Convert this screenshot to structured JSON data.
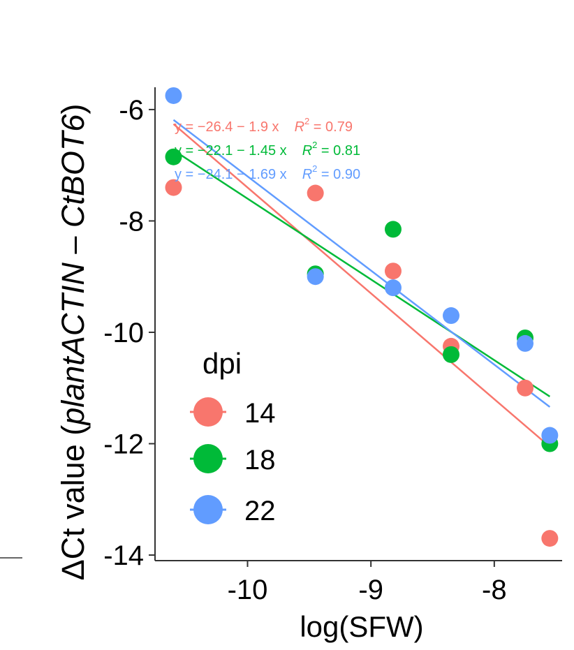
{
  "chart_data": {
    "type": "scatter",
    "xlabel": "log(SFW)",
    "ylabel_parts": [
      {
        "text": "ΔCt value (",
        "italic": false
      },
      {
        "text": "plantACTIN",
        "italic": true
      },
      {
        "text": " – ",
        "italic": false
      },
      {
        "text": "CtBOT6",
        "italic": true
      },
      {
        "text": ")",
        "italic": false
      }
    ],
    "xlim": [
      -10.75,
      -7.45
    ],
    "ylim": [
      -14.1,
      -5.6
    ],
    "x_ticks": [
      -10,
      -9,
      -8
    ],
    "x_tick_labels": [
      "-10",
      "-9",
      "-8"
    ],
    "y_ticks": [
      -6,
      -8,
      -10,
      -12,
      -14
    ],
    "y_tick_labels": [
      "-6",
      "-8",
      "-10",
      "-12",
      "-14"
    ],
    "grid": false,
    "legend": {
      "title": "dpi",
      "position": "bottom-left"
    },
    "series": [
      {
        "name": "14",
        "color": "#F8766D",
        "x": [
          -10.6,
          -9.45,
          -8.82,
          -8.35,
          -7.75,
          -7.55
        ],
        "y": [
          -7.4,
          -7.5,
          -8.9,
          -10.25,
          -11.0,
          -13.7
        ],
        "fit": {
          "intercept": -26.4,
          "slope": -1.9,
          "x_range": [
            -10.6,
            -7.55
          ]
        },
        "equation": {
          "y_part": "y = −26.4 − 1.9 x",
          "r2_label": "R",
          "r2_sup": "2",
          "r2_value": " = 0.79"
        }
      },
      {
        "name": "18",
        "color": "#00BA38",
        "x": [
          -10.6,
          -9.45,
          -8.82,
          -8.35,
          -7.75,
          -7.55
        ],
        "y": [
          -6.85,
          -8.95,
          -8.15,
          -10.4,
          -10.1,
          -12.0
        ],
        "fit": {
          "intercept": -22.1,
          "slope": -1.45,
          "x_range": [
            -10.6,
            -7.55
          ]
        },
        "equation": {
          "y_part": "y = −22.1 − 1.45 x",
          "r2_label": "R",
          "r2_sup": "2",
          "r2_value": " = 0.81"
        }
      },
      {
        "name": "22",
        "color": "#619CFF",
        "x": [
          -10.6,
          -9.45,
          -8.82,
          -8.35,
          -7.75,
          -7.55
        ],
        "y": [
          -5.75,
          -9.0,
          -9.2,
          -9.7,
          -10.2,
          -11.85
        ],
        "fit": {
          "intercept": -24.1,
          "slope": -1.69,
          "x_range": [
            -10.6,
            -7.55
          ]
        },
        "equation": {
          "y_part": "y = −24.1 − 1.69 x",
          "r2_label": "R",
          "r2_sup": "2",
          "r2_value": " = 0.90"
        }
      }
    ]
  }
}
